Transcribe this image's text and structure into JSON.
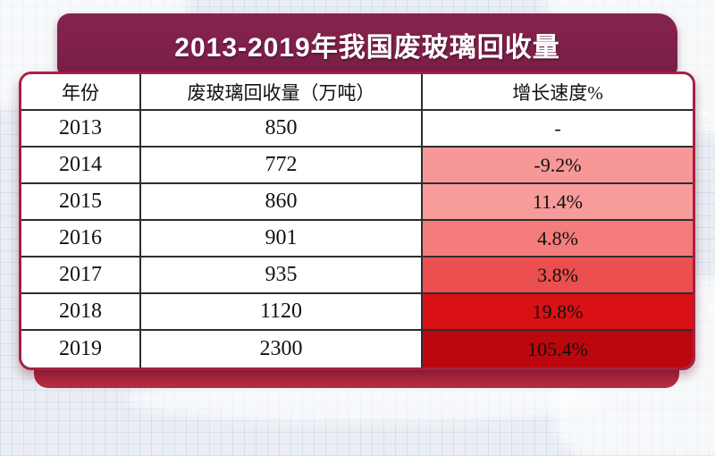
{
  "title": "2013-2019年我国废玻璃回收量",
  "table": {
    "headers": [
      "年份",
      "废玻璃回收量（万吨）",
      "增长速度%"
    ],
    "rows": [
      {
        "year": "2013",
        "volume": "850",
        "growth": "-",
        "growth_bg": "#FFFFFF"
      },
      {
        "year": "2014",
        "volume": "772",
        "growth": "-9.2%",
        "growth_bg": "#F79898"
      },
      {
        "year": "2015",
        "volume": "860",
        "growth": "11.4%",
        "growth_bg": "#F79B9B"
      },
      {
        "year": "2016",
        "volume": "901",
        "growth": "4.8%",
        "growth_bg": "#F57C7C"
      },
      {
        "year": "2017",
        "volume": "935",
        "growth": "3.8%",
        "growth_bg": "#EB4F4F"
      },
      {
        "year": "2018",
        "volume": "1120",
        "growth": "19.8%",
        "growth_bg": "#D91016"
      },
      {
        "year": "2019",
        "volume": "2300",
        "growth": "105.4%",
        "growth_bg": "#BB080E"
      }
    ]
  },
  "chart_data": {
    "type": "table",
    "title": "2013-2019年我国废玻璃回收量",
    "columns": [
      "年份",
      "废玻璃回收量（万吨）",
      "增长速度%"
    ],
    "years": [
      2013,
      2014,
      2015,
      2016,
      2017,
      2018,
      2019
    ],
    "recovery_volume_wan_tons": [
      850,
      772,
      860,
      901,
      935,
      1120,
      2300
    ],
    "growth_rate_percent": [
      null,
      -9.2,
      11.4,
      4.8,
      3.8,
      19.8,
      105.4
    ],
    "growth_cell_colors": [
      "#FFFFFF",
      "#F79898",
      "#F79B9B",
      "#F57C7C",
      "#EB4F4F",
      "#D91016",
      "#BB080E"
    ],
    "legend_position": "none",
    "notes": "growth column shaded light pink to dark red as rate increases"
  },
  "colors": {
    "banner_maroon": "#7D1F49",
    "panel_border_crimson": "#A62140",
    "page_background": "#EAEEF4",
    "cell_border": "#2E2E2E",
    "pedestal_dark": "#5E1224",
    "pedestal_crimson": "#B12A3B"
  },
  "decor": {
    "sparkle_glyph": "+"
  }
}
